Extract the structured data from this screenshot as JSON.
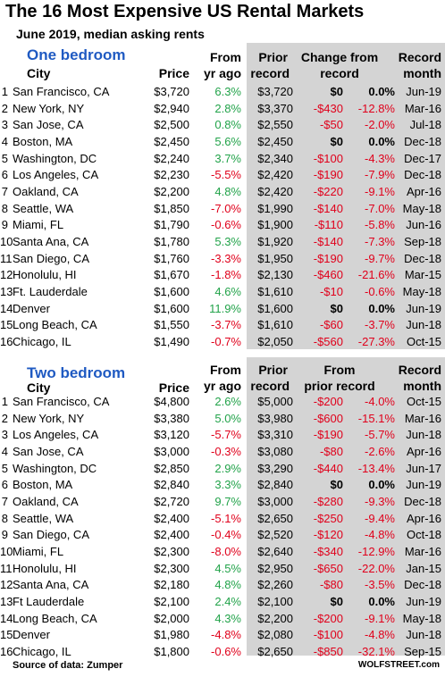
{
  "header": {
    "title": "The 16 Most Expensive US Rental Markets",
    "subtitle": "June  2019, median asking rents"
  },
  "one_bedroom": {
    "heading": "One bedroom",
    "col_city": "City",
    "col_price": "Price",
    "col_yoy_1": "From",
    "col_yoy_2": "yr ago",
    "col_prior_1": "Prior",
    "col_prior_2": "record",
    "col_change_1": "Change from",
    "col_change_2": "record",
    "col_month_1": "Record",
    "col_month_2": "month",
    "rows": [
      {
        "rank": "1",
        "city": "San Francisco, CA",
        "price": "$3,720",
        "yoy": "6.3%",
        "yoy_sign": "pos",
        "prior": "$3,720",
        "chg": "$0",
        "pct": "0.0%",
        "sign": "zero",
        "month": "Jun-19"
      },
      {
        "rank": "2",
        "city": "New York, NY",
        "price": "$2,940",
        "yoy": "2.8%",
        "yoy_sign": "pos",
        "prior": "$3,370",
        "chg": "-$430",
        "pct": "-12.8%",
        "sign": "neg",
        "month": "Mar-16"
      },
      {
        "rank": "3",
        "city": "San Jose, CA",
        "price": "$2,500",
        "yoy": "0.8%",
        "yoy_sign": "pos",
        "prior": "$2,550",
        "chg": "-$50",
        "pct": "-2.0%",
        "sign": "neg",
        "month": "Jul-18"
      },
      {
        "rank": "4",
        "city": "Boston, MA",
        "price": "$2,450",
        "yoy": "5.6%",
        "yoy_sign": "pos",
        "prior": "$2,450",
        "chg": "$0",
        "pct": "0.0%",
        "sign": "zero",
        "month": "Dec-18"
      },
      {
        "rank": "5",
        "city": "Washington, DC",
        "price": "$2,240",
        "yoy": "3.7%",
        "yoy_sign": "pos",
        "prior": "$2,340",
        "chg": "-$100",
        "pct": "-4.3%",
        "sign": "neg",
        "month": "Dec-17"
      },
      {
        "rank": "6",
        "city": "Los Angeles, CA",
        "price": "$2,230",
        "yoy": "-5.5%",
        "yoy_sign": "neg",
        "prior": "$2,420",
        "chg": "-$190",
        "pct": "-7.9%",
        "sign": "neg",
        "month": "Dec-18"
      },
      {
        "rank": "7",
        "city": "Oakland, CA",
        "price": "$2,200",
        "yoy": "4.8%",
        "yoy_sign": "pos",
        "prior": "$2,420",
        "chg": "-$220",
        "pct": "-9.1%",
        "sign": "neg",
        "month": "Apr-16"
      },
      {
        "rank": "8",
        "city": "Seattle, WA",
        "price": "$1,850",
        "yoy": "-7.0%",
        "yoy_sign": "neg",
        "prior": "$1,990",
        "chg": "-$140",
        "pct": "-7.0%",
        "sign": "neg",
        "month": "May-18"
      },
      {
        "rank": "9",
        "city": "Miami, FL",
        "price": "$1,790",
        "yoy": "-0.6%",
        "yoy_sign": "neg",
        "prior": "$1,900",
        "chg": "-$110",
        "pct": "-5.8%",
        "sign": "neg",
        "month": "Jun-16"
      },
      {
        "rank": "10",
        "city": "Santa Ana, CA",
        "price": "$1,780",
        "yoy": "5.3%",
        "yoy_sign": "pos",
        "prior": "$1,920",
        "chg": "-$140",
        "pct": "-7.3%",
        "sign": "neg",
        "month": "Sep-18"
      },
      {
        "rank": "11",
        "city": "San Diego, CA",
        "price": "$1,760",
        "yoy": "-3.3%",
        "yoy_sign": "neg",
        "prior": "$1,950",
        "chg": "-$190",
        "pct": "-9.7%",
        "sign": "neg",
        "month": "Dec-18"
      },
      {
        "rank": "12",
        "city": "Honolulu, HI",
        "price": "$1,670",
        "yoy": "-1.8%",
        "yoy_sign": "neg",
        "prior": "$2,130",
        "chg": "-$460",
        "pct": "-21.6%",
        "sign": "neg",
        "month": "Mar-15"
      },
      {
        "rank": "13",
        "city": "Ft. Lauderdale",
        "price": "$1,600",
        "yoy": "4.6%",
        "yoy_sign": "pos",
        "prior": "$1,610",
        "chg": "-$10",
        "pct": "-0.6%",
        "sign": "neg",
        "month": "May-18"
      },
      {
        "rank": "14",
        "city": "Denver",
        "price": "$1,600",
        "yoy": "11.9%",
        "yoy_sign": "pos",
        "prior": "$1,600",
        "chg": "$0",
        "pct": "0.0%",
        "sign": "zero",
        "month": "Jun-19"
      },
      {
        "rank": "15",
        "city": "Long Beach, CA",
        "price": "$1,550",
        "yoy": "-3.7%",
        "yoy_sign": "neg",
        "prior": "$1,610",
        "chg": "-$60",
        "pct": "-3.7%",
        "sign": "neg",
        "month": "Jun-18"
      },
      {
        "rank": "16",
        "city": "Chicago, IL",
        "price": "$1,490",
        "yoy": "-0.7%",
        "yoy_sign": "neg",
        "prior": "$2,050",
        "chg": "-$560",
        "pct": "-27.3%",
        "sign": "neg",
        "month": "Oct-15"
      }
    ]
  },
  "two_bedroom": {
    "heading": "Two bedroom",
    "col_city": "City",
    "col_price": "Price",
    "col_yoy_1": "From",
    "col_yoy_2": "yr ago",
    "col_prior_1": "Prior",
    "col_prior_2": "record",
    "col_change_1": "From",
    "col_change_2": "prior record",
    "col_month_1": "Record",
    "col_month_2": "month",
    "rows": [
      {
        "rank": "1",
        "city": "San Francisco, CA",
        "price": "$4,800",
        "yoy": "2.6%",
        "yoy_sign": "pos",
        "prior": "$5,000",
        "chg": "-$200",
        "pct": "-4.0%",
        "sign": "neg",
        "month": "Oct-15"
      },
      {
        "rank": "2",
        "city": "New York, NY",
        "price": "$3,380",
        "yoy": "5.0%",
        "yoy_sign": "pos",
        "prior": "$3,980",
        "chg": "-$600",
        "pct": "-15.1%",
        "sign": "neg",
        "month": "Mar-16"
      },
      {
        "rank": "3",
        "city": "Los Angeles, CA",
        "price": "$3,120",
        "yoy": "-5.7%",
        "yoy_sign": "neg",
        "prior": "$3,310",
        "chg": "-$190",
        "pct": "-5.7%",
        "sign": "neg",
        "month": "Jun-18"
      },
      {
        "rank": "4",
        "city": "San Jose, CA",
        "price": "$3,000",
        "yoy": "-0.3%",
        "yoy_sign": "neg",
        "prior": "$3,080",
        "chg": "-$80",
        "pct": "-2.6%",
        "sign": "neg",
        "month": "Apr-16"
      },
      {
        "rank": "5",
        "city": "Washington, DC",
        "price": "$2,850",
        "yoy": "2.9%",
        "yoy_sign": "pos",
        "prior": "$3,290",
        "chg": "-$440",
        "pct": "-13.4%",
        "sign": "neg",
        "month": "Jun-17"
      },
      {
        "rank": "6",
        "city": "Boston, MA",
        "price": "$2,840",
        "yoy": "3.3%",
        "yoy_sign": "pos",
        "prior": "$2,840",
        "chg": "$0",
        "pct": "0.0%",
        "sign": "zero",
        "month": "Jun-19"
      },
      {
        "rank": "7",
        "city": "Oakland, CA",
        "price": "$2,720",
        "yoy": "9.7%",
        "yoy_sign": "pos",
        "prior": "$3,000",
        "chg": "-$280",
        "pct": "-9.3%",
        "sign": "neg",
        "month": "Dec-18"
      },
      {
        "rank": "8",
        "city": "Seattle, WA",
        "price": "$2,400",
        "yoy": "-5.1%",
        "yoy_sign": "neg",
        "prior": "$2,650",
        "chg": "-$250",
        "pct": "-9.4%",
        "sign": "neg",
        "month": "Apr-16"
      },
      {
        "rank": "9",
        "city": "San Diego, CA",
        "price": "$2,400",
        "yoy": "-0.4%",
        "yoy_sign": "neg",
        "prior": "$2,520",
        "chg": "-$120",
        "pct": "-4.8%",
        "sign": "neg",
        "month": "Oct-18"
      },
      {
        "rank": "10",
        "city": "Miami, FL",
        "price": "$2,300",
        "yoy": "-8.0%",
        "yoy_sign": "neg",
        "prior": "$2,640",
        "chg": "-$340",
        "pct": "-12.9%",
        "sign": "neg",
        "month": "Mar-16"
      },
      {
        "rank": "11",
        "city": "Honolulu, HI",
        "price": "$2,300",
        "yoy": "4.5%",
        "yoy_sign": "pos",
        "prior": "$2,950",
        "chg": "-$650",
        "pct": "-22.0%",
        "sign": "neg",
        "month": "Jan-15"
      },
      {
        "rank": "12",
        "city": "Santa Ana, CA",
        "price": "$2,180",
        "yoy": "4.8%",
        "yoy_sign": "pos",
        "prior": "$2,260",
        "chg": "-$80",
        "pct": "-3.5%",
        "sign": "neg",
        "month": "Dec-18"
      },
      {
        "rank": "13",
        "city": "Ft Lauderdale",
        "price": "$2,100",
        "yoy": "2.4%",
        "yoy_sign": "pos",
        "prior": "$2,100",
        "chg": "$0",
        "pct": "0.0%",
        "sign": "zero",
        "month": "Jun-19"
      },
      {
        "rank": "14",
        "city": "Long Beach, CA",
        "price": "$2,000",
        "yoy": "4.3%",
        "yoy_sign": "pos",
        "prior": "$2,200",
        "chg": "-$200",
        "pct": "-9.1%",
        "sign": "neg",
        "month": "May-18"
      },
      {
        "rank": "15",
        "city": "Denver",
        "price": "$1,980",
        "yoy": "-4.8%",
        "yoy_sign": "neg",
        "prior": "$2,080",
        "chg": "-$100",
        "pct": "-4.8%",
        "sign": "neg",
        "month": "Jun-18"
      },
      {
        "rank": "16",
        "city": "Chicago, IL",
        "price": "$1,800",
        "yoy": "-0.6%",
        "yoy_sign": "neg",
        "prior": "$2,650",
        "chg": "-$850",
        "pct": "-32.1%",
        "sign": "neg",
        "month": "Sep-15"
      }
    ]
  },
  "footer": {
    "source": "Source of data: Zumper",
    "brand": "WOLFSTREET.com"
  },
  "colors": {
    "heading_blue": "#1f5ac2",
    "positive_green": "#22a34a",
    "negative_red": "#e0001b",
    "shade_gray": "#d4d4d4"
  }
}
